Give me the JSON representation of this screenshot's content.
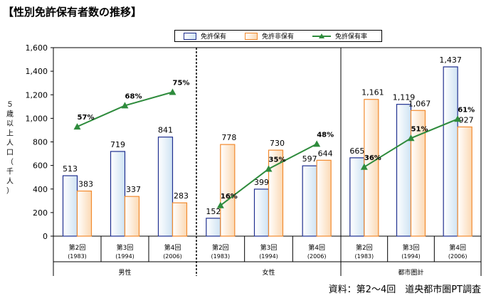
{
  "page": {
    "title": "【性別免許保有者数の推移】",
    "source": "資料：第2～4回　道央都市圏PT調査"
  },
  "colors": {
    "holders_stroke": "#1f2f8f",
    "nonholders_stroke": "#f28a2e",
    "rate_line": "#2e8b3c",
    "axis": "#000000"
  },
  "chart_data": {
    "type": "bar",
    "ylabel": "５歳以上人口（千人）",
    "ylim": [
      0,
      1600
    ],
    "yticks": [
      "0",
      "200",
      "400",
      "600",
      "800",
      "1,000",
      "1,200",
      "1,400",
      "1,600"
    ],
    "legend_position": "top",
    "groups": [
      {
        "label": "男性",
        "categories": [
          {
            "name": "第2回",
            "year": "(1983)"
          },
          {
            "name": "第3回",
            "year": "(1994)"
          },
          {
            "name": "第4回",
            "year": "(2006)"
          }
        ],
        "holders": [
          513,
          719,
          841
        ],
        "holders_labels": [
          "513",
          "719",
          "841"
        ],
        "nonholders": [
          383,
          337,
          283
        ],
        "nonholders_labels": [
          "383",
          "337",
          "283"
        ],
        "rate": [
          57,
          68,
          75
        ],
        "rate_labels": [
          "57%",
          "68%",
          "75%"
        ]
      },
      {
        "label": "女性",
        "categories": [
          {
            "name": "第2回",
            "year": "(1983)"
          },
          {
            "name": "第3回",
            "year": "(1994)"
          },
          {
            "name": "第4回",
            "year": "(2006)"
          }
        ],
        "holders": [
          152,
          399,
          597
        ],
        "holders_labels": [
          "152",
          "399",
          "597"
        ],
        "nonholders": [
          778,
          730,
          644
        ],
        "nonholders_labels": [
          "778",
          "730",
          "644"
        ],
        "rate": [
          16,
          35,
          48
        ],
        "rate_labels": [
          "16%",
          "35%",
          "48%"
        ]
      },
      {
        "label": "都市圏計",
        "categories": [
          {
            "name": "第2回",
            "year": "(1983)"
          },
          {
            "name": "第3回",
            "year": "(1994)"
          },
          {
            "name": "第4回",
            "year": "(2006)"
          }
        ],
        "holders": [
          665,
          1119,
          1437
        ],
        "holders_labels": [
          "665",
          "1,119",
          "1,437"
        ],
        "nonholders": [
          1161,
          1067,
          927
        ],
        "nonholders_labels": [
          "1,161",
          "1,067",
          "927"
        ],
        "rate": [
          36,
          51,
          61
        ],
        "rate_labels": [
          "36%",
          "51%",
          "61%"
        ]
      }
    ],
    "legend": {
      "holders": "免許保有",
      "nonholders": "免許非保有",
      "rate": "免許保有率"
    }
  }
}
